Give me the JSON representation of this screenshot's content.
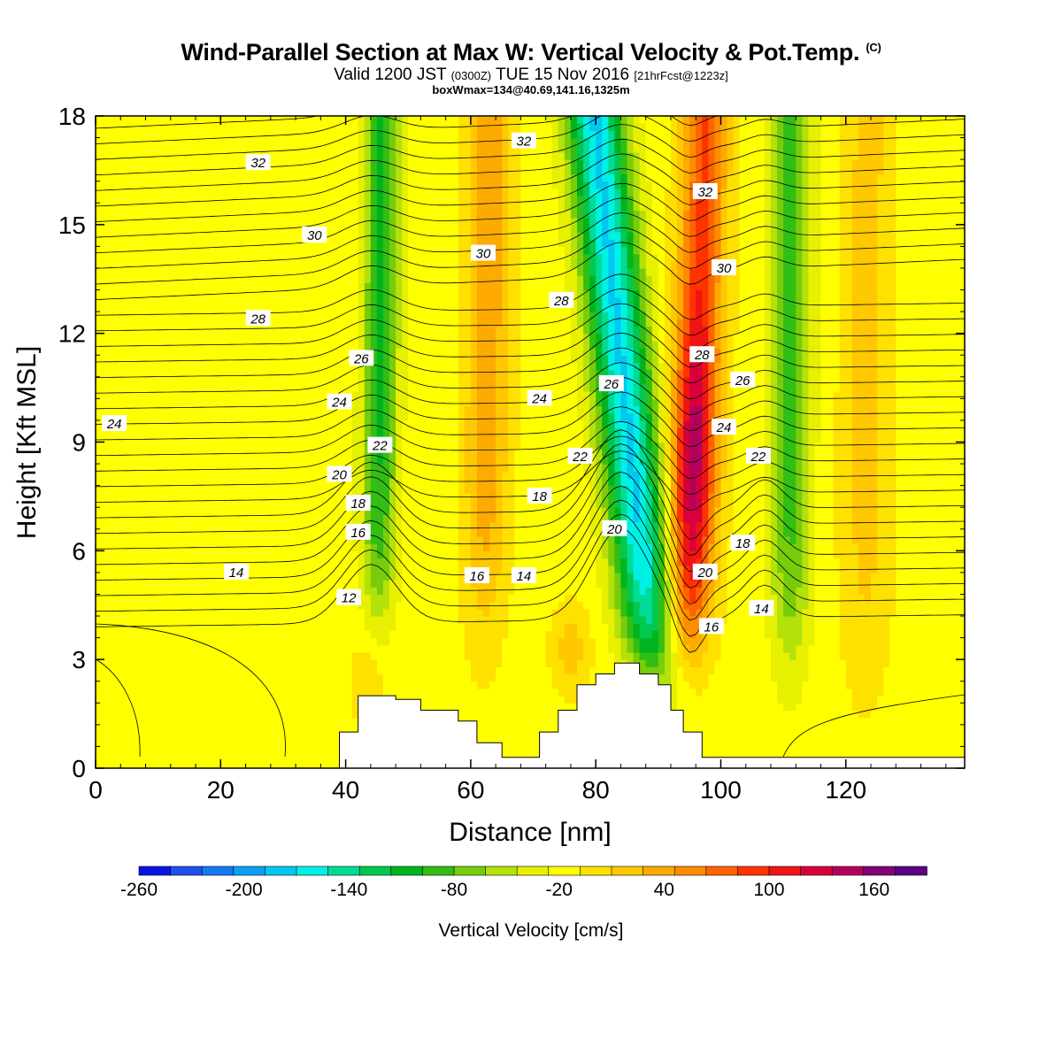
{
  "header": {
    "title_main": "Wind-Parallel Section at Max W: Vertical Velocity & Pot.Temp.",
    "title_mark": "(C)",
    "subtitle_a": "Valid 1200 JST",
    "subtitle_b": "(0300Z)",
    "subtitle_c": "TUE 15 Nov 2016",
    "subtitle_d": "[21hrFcst@1223z]",
    "subtitle_line2": "boxWmax=134@40.69,141.16,1325m"
  },
  "chart_data": {
    "type": "heatmap",
    "xlabel": "Distance [nm]",
    "ylabel": "Height [Kft MSL]",
    "xlim": [
      0,
      139
    ],
    "ylim": [
      0,
      18
    ],
    "x_ticks": [
      "0",
      "20",
      "40",
      "60",
      "80",
      "100",
      "120"
    ],
    "x_tick_values": [
      0,
      20,
      40,
      60,
      80,
      100,
      120
    ],
    "y_ticks": [
      "0",
      "3",
      "6",
      "9",
      "12",
      "15",
      "18"
    ],
    "y_tick_values": [
      0,
      3,
      6,
      9,
      12,
      15,
      18
    ],
    "colorbar": {
      "label": "Vertical Velocity [cm/s]",
      "tick_labels": [
        "-260",
        "-200",
        "-140",
        "-80",
        "-20",
        "40",
        "100",
        "160"
      ],
      "tick_values": [
        -260,
        -200,
        -140,
        -80,
        -20,
        40,
        100,
        160
      ],
      "min": -260,
      "max": 190,
      "step": 20,
      "colors": [
        "#0a14e6",
        "#1e50f0",
        "#1478f5",
        "#0aa0f5",
        "#00c8f0",
        "#00f0e6",
        "#00dc96",
        "#00c850",
        "#00b41e",
        "#32be14",
        "#78cd0a",
        "#b4e10a",
        "#e6f000",
        "#ffff00",
        "#ffe100",
        "#ffc800",
        "#ffaa00",
        "#ff8c00",
        "#ff6400",
        "#ff3200",
        "#f01414",
        "#d7003c",
        "#b4005a",
        "#820078",
        "#5a0082"
      ]
    },
    "theta_contour_labels": [
      {
        "text": "32",
        "x": 26,
        "y": 16.7
      },
      {
        "text": "32",
        "x": 68.5,
        "y": 17.3
      },
      {
        "text": "32",
        "x": 97.5,
        "y": 15.9
      },
      {
        "text": "30",
        "x": 35,
        "y": 14.7
      },
      {
        "text": "30",
        "x": 62,
        "y": 14.2
      },
      {
        "text": "30",
        "x": 100.5,
        "y": 13.8
      },
      {
        "text": "28",
        "x": 26,
        "y": 12.4
      },
      {
        "text": "28",
        "x": 74.5,
        "y": 12.9
      },
      {
        "text": "28",
        "x": 97,
        "y": 11.4
      },
      {
        "text": "26",
        "x": 42.5,
        "y": 11.3
      },
      {
        "text": "26",
        "x": 82.5,
        "y": 10.6
      },
      {
        "text": "26",
        "x": 103.5,
        "y": 10.7
      },
      {
        "text": "24",
        "x": 3,
        "y": 9.5
      },
      {
        "text": "24",
        "x": 39,
        "y": 10.1
      },
      {
        "text": "24",
        "x": 71,
        "y": 10.2
      },
      {
        "text": "24",
        "x": 100.5,
        "y": 9.4
      },
      {
        "text": "22",
        "x": 45.5,
        "y": 8.9
      },
      {
        "text": "22",
        "x": 77.5,
        "y": 8.6
      },
      {
        "text": "22",
        "x": 106,
        "y": 8.6
      },
      {
        "text": "20",
        "x": 39,
        "y": 8.1
      },
      {
        "text": "20",
        "x": 83,
        "y": 6.6
      },
      {
        "text": "20",
        "x": 97.5,
        "y": 5.4
      },
      {
        "text": "18",
        "x": 42,
        "y": 7.3
      },
      {
        "text": "18",
        "x": 71,
        "y": 7.5
      },
      {
        "text": "18",
        "x": 103.5,
        "y": 6.2
      },
      {
        "text": "16",
        "x": 42,
        "y": 6.5
      },
      {
        "text": "16",
        "x": 61,
        "y": 5.3
      },
      {
        "text": "16",
        "x": 98.5,
        "y": 3.9
      },
      {
        "text": "14",
        "x": 22.5,
        "y": 5.4
      },
      {
        "text": "14",
        "x": 68.5,
        "y": 5.3
      },
      {
        "text": "14",
        "x": 106.5,
        "y": 4.4
      },
      {
        "text": "12",
        "x": 40.5,
        "y": 4.7
      }
    ],
    "terrain": [
      [
        0,
        0
      ],
      [
        39,
        0
      ],
      [
        39,
        1
      ],
      [
        42,
        1
      ],
      [
        42,
        2
      ],
      [
        48,
        2
      ],
      [
        48,
        1.9
      ],
      [
        52,
        1.9
      ],
      [
        52,
        1.6
      ],
      [
        58,
        1.6
      ],
      [
        58,
        1.3
      ],
      [
        61,
        1.3
      ],
      [
        61,
        0.7
      ],
      [
        65,
        0.7
      ],
      [
        65,
        0.3
      ],
      [
        71,
        0.3
      ],
      [
        71,
        1
      ],
      [
        74,
        1
      ],
      [
        74,
        1.6
      ],
      [
        77,
        1.6
      ],
      [
        77,
        2.3
      ],
      [
        80,
        2.3
      ],
      [
        80,
        2.6
      ],
      [
        83,
        2.6
      ],
      [
        83,
        2.9
      ],
      [
        87,
        2.9
      ],
      [
        87,
        2.6
      ],
      [
        90,
        2.6
      ],
      [
        90,
        2.3
      ],
      [
        92,
        2.3
      ],
      [
        92,
        1.6
      ],
      [
        94,
        1.6
      ],
      [
        94,
        1
      ],
      [
        97,
        1
      ],
      [
        97,
        0.3
      ],
      [
        139,
        0.3
      ],
      [
        139,
        0
      ]
    ]
  }
}
